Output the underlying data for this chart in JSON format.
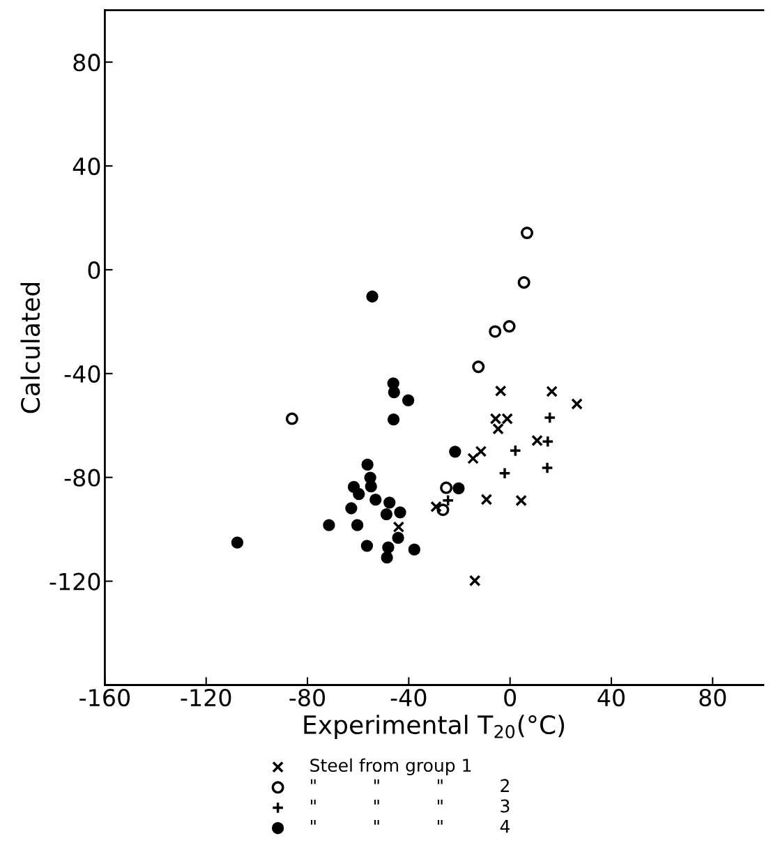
{
  "chart_data": {
    "type": "scatter",
    "xlabel": "Experimental T$_{20}$(°C)",
    "ylabel": "Calculated",
    "xlim": [
      -160,
      100
    ],
    "ylim": [
      -160,
      100
    ],
    "xticks": [
      -160,
      -120,
      -80,
      -40,
      0,
      40,
      80
    ],
    "yticks": [
      -120,
      -80,
      -40,
      0,
      40,
      80
    ],
    "grid": false,
    "legend": "bottom",
    "series": [
      {
        "name": "Steel from group 1",
        "color": "#000000",
        "marker": "cross",
        "x": [
          -3.7,
          16.5,
          26.4,
          -5.7,
          -1.1,
          -4.7,
          10.7,
          -11.5,
          -14.6,
          -9.3,
          4.4,
          -13.9,
          -29.2,
          -44
        ],
        "values": [
          -46.7,
          -46.9,
          -51.7,
          -57.4,
          -57.4,
          -61.3,
          -65.8,
          -70,
          -72.7,
          -88.5,
          -88.9,
          -119.8,
          -91.3,
          -99.1
        ]
      },
      {
        "name": "\"          \"          \"          2",
        "color": "#000000",
        "marker": "circle-open",
        "x": [
          6.7,
          5.5,
          -0.3,
          -5.9,
          -12.5,
          -86.1,
          -25.2,
          -26.5
        ],
        "values": [
          14.2,
          -4.9,
          -21.8,
          -23.8,
          -37.4,
          -57.4,
          -84,
          -92.5
        ]
      },
      {
        "name": "\"          \"          \"          3",
        "color": "#000000",
        "marker": "plus",
        "x": [
          15.7,
          14.9,
          2.1,
          -2.1,
          14.7,
          -24.5
        ],
        "values": [
          -57,
          -66.2,
          -69.7,
          -78.4,
          -76.3,
          -88.9
        ]
      },
      {
        "name": "\"          \"          \"          4",
        "color": "#000000",
        "marker": "circle",
        "x": [
          -54.4,
          -46.1,
          -45.8,
          -40.2,
          -46,
          -107.7,
          -71.5,
          -56.3,
          -55.2,
          -54.9,
          -61.7,
          -59.7,
          -53.1,
          -62.7,
          -47.6,
          -48.8,
          -43.4,
          -60.3,
          -44.2,
          -56.5,
          -48.1,
          -48.6,
          -37.8,
          -21.7,
          -20.3
        ],
        "values": [
          -10.3,
          -43.8,
          -47.2,
          -50.3,
          -57.7,
          -105.1,
          -98.4,
          -75.1,
          -80.1,
          -83.5,
          -83.7,
          -86.4,
          -88.6,
          -91.9,
          -89.7,
          -94.2,
          -93.5,
          -98.4,
          -103.3,
          -106.4,
          -107,
          -110.9,
          -107.8,
          -70.1,
          -84.2
        ]
      }
    ]
  }
}
